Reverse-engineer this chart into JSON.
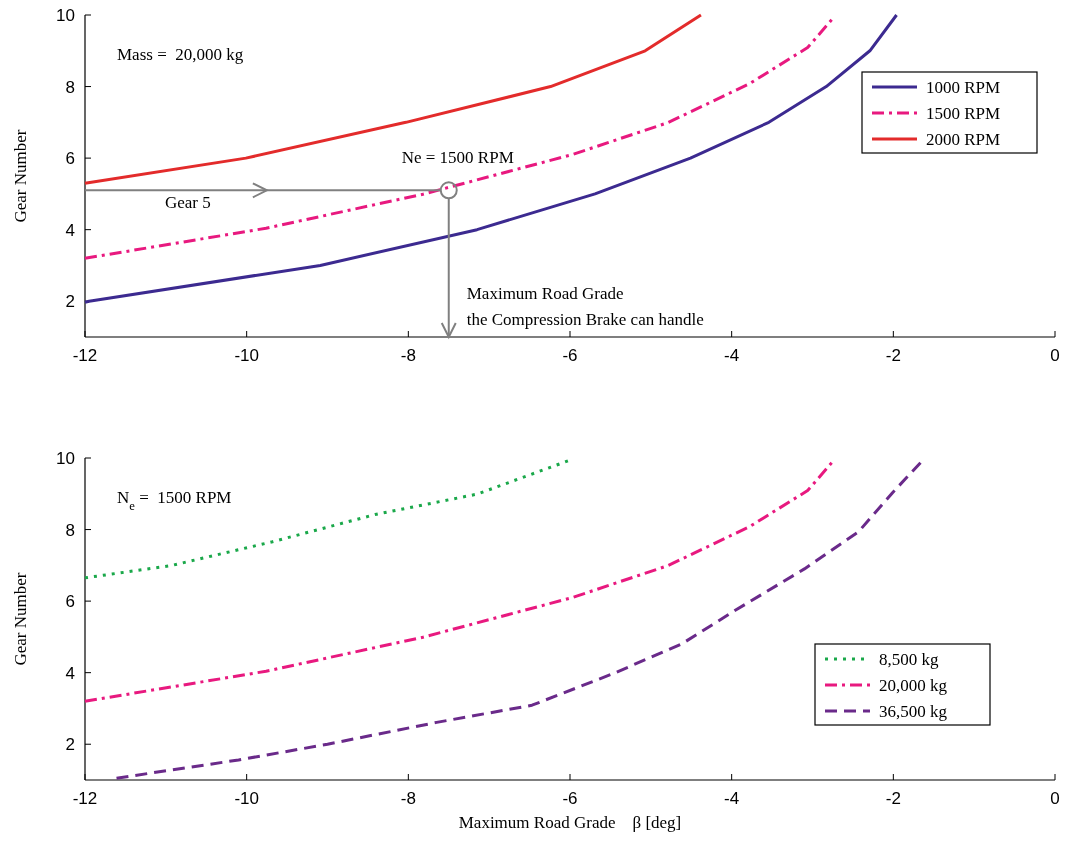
{
  "chart_data": [
    {
      "type": "line",
      "ylabel": "Gear Number",
      "xlim": [
        -12,
        0
      ],
      "ylim": [
        1,
        10
      ],
      "xticks": [
        -12,
        -10,
        -8,
        -6,
        -4,
        -2,
        0
      ],
      "yticks": [
        2,
        4,
        6,
        8,
        10
      ],
      "legend": "top right",
      "grid": false,
      "marker": "none",
      "annotations": [
        "Mass =  20,000 kg",
        {
          "text": "Ne = 1500 RPM",
          "x": -7.5,
          "y": 5.1
        },
        "Gear 5",
        "Maximum Road Grade\nthe Compression Brake can handle"
      ],
      "series": [
        {
          "name": "1000 RPM",
          "color": "#3c2a90",
          "line_style": "solid",
          "x": [
            -12,
            -11.95,
            -9.09,
            -7.15,
            -5.69,
            -4.51,
            -3.54,
            -2.83,
            -2.29,
            -1.96
          ],
          "values": [
            1.97,
            2,
            3,
            4,
            5,
            6,
            7,
            8,
            9,
            10
          ]
        },
        {
          "name": "1500 RPM",
          "color": "#e8197f",
          "line_style": "dashdot",
          "x": [
            -12,
            -9.76,
            -7.82,
            -5.97,
            -4.79,
            -3.78,
            -3.06,
            -2.75
          ],
          "values": [
            3.2,
            4.04,
            4.99,
            6.1,
            6.99,
            8.08,
            9.09,
            9.9
          ]
        },
        {
          "name": "2000 RPM",
          "color": "#e32b2b",
          "line_style": "solid",
          "x": [
            -12,
            -10.01,
            -8.03,
            -6.24,
            -5.07,
            -4.38
          ],
          "values": [
            5.3,
            6,
            7,
            8,
            9,
            10
          ]
        }
      ]
    },
    {
      "type": "line",
      "xlabel": "Maximum Road Grade    β [deg]",
      "ylabel": "Gear Number",
      "xlim": [
        -12,
        0
      ],
      "ylim": [
        1,
        10
      ],
      "xticks": [
        -12,
        -10,
        -8,
        -6,
        -4,
        -2,
        0
      ],
      "yticks": [
        2,
        4,
        6,
        8,
        10
      ],
      "legend": "bottom right",
      "grid": false,
      "marker": "none",
      "annotations": [
        "N$_{e}$ =  1500 RPM"
      ],
      "series": [
        {
          "name": "8,500 kg",
          "color": "#1aa84a",
          "line_style": "dotted",
          "x": [
            -12,
            -10.94,
            -9.68,
            -8.41,
            -7.15,
            -6.0
          ],
          "values": [
            6.65,
            6.99,
            7.66,
            8.42,
            8.99,
            9.94
          ]
        },
        {
          "name": "20,000 kg",
          "color": "#e8197f",
          "line_style": "dashdot",
          "x": [
            -12,
            -9.76,
            -7.82,
            -5.97,
            -4.79,
            -3.78,
            -3.06,
            -2.75
          ],
          "values": [
            3.2,
            4.04,
            4.99,
            6.1,
            6.99,
            8.08,
            9.09,
            9.9
          ]
        },
        {
          "name": "36,500 kg",
          "color": "#6a2a8a",
          "line_style": "dashed",
          "x": [
            -11.61,
            -10.1,
            -9.0,
            -7.65,
            -6.47,
            -5.46,
            -4.62,
            -3.95,
            -3.1,
            -2.43,
            -2.01,
            -1.61
          ],
          "values": [
            1.05,
            1.56,
            2.0,
            2.61,
            3.09,
            3.98,
            4.8,
            5.75,
            6.9,
            7.94,
            9.03,
            10
          ]
        }
      ]
    }
  ]
}
